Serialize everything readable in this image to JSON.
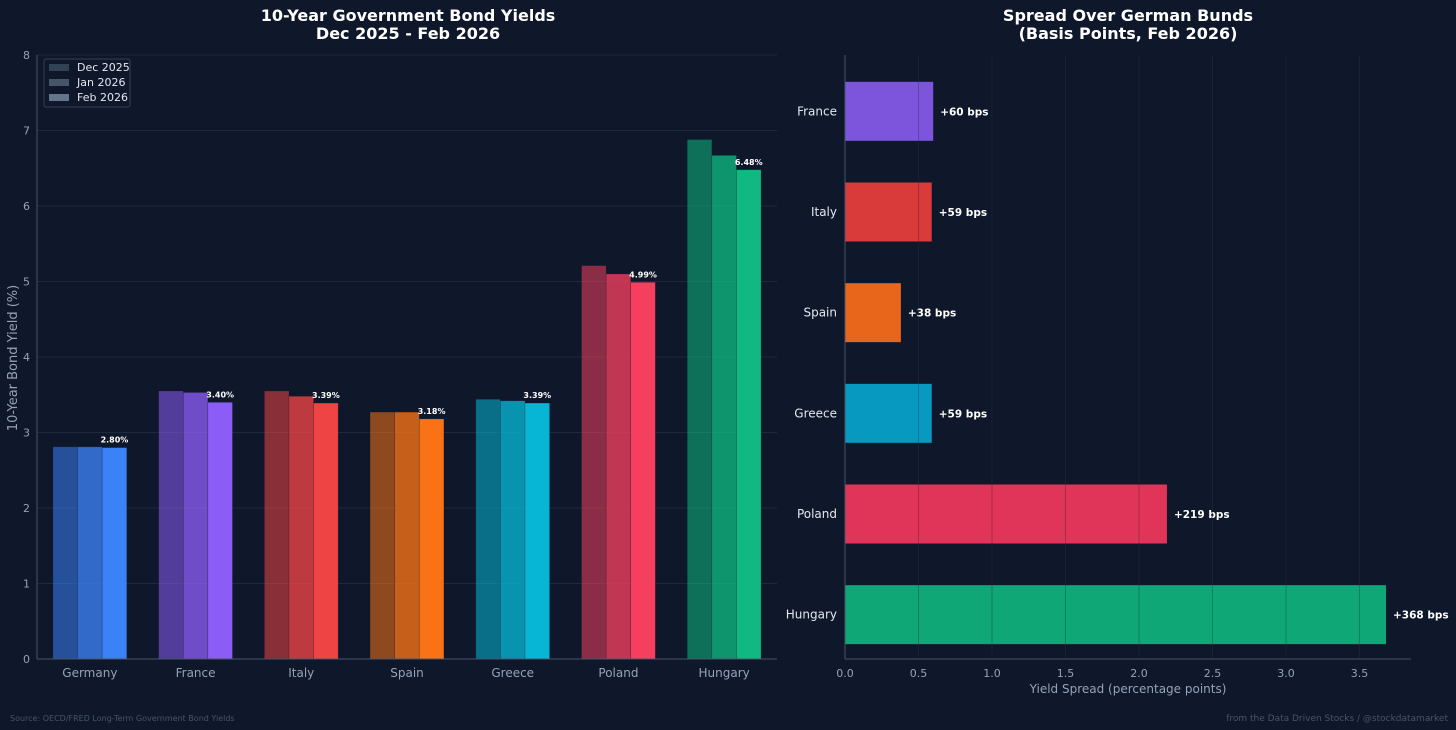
{
  "colors": {
    "background": "#0f172a",
    "axis": "#475569",
    "grid": "#1e293b",
    "text": "#94a3b8",
    "title": "#ffffff"
  },
  "footer": {
    "source": "Source: OECD/FRED Long-Term Government Bond Yields",
    "credit": "from the Data Driven Stocks / @stockdatamarket"
  },
  "chart_data": [
    {
      "type": "bar",
      "title": "10-Year Government Bond Yields",
      "subtitle": "Dec 2025 - Feb 2026",
      "xlabel": "",
      "ylabel": "10-Year Bond Yield (%)",
      "ylim": [
        0,
        8
      ],
      "yticks": [
        "0",
        "1",
        "2",
        "3",
        "4",
        "5",
        "6",
        "7",
        "8"
      ],
      "grid": true,
      "legend_position": "top-left",
      "categories": [
        "Germany",
        "France",
        "Italy",
        "Spain",
        "Greece",
        "Poland",
        "Hungary"
      ],
      "colors": [
        "#3b82f6",
        "#8b5cf6",
        "#ef4444",
        "#f97316",
        "#06b6d4",
        "#f43f5e",
        "#10b981"
      ],
      "series": [
        {
          "name": "Dec 2025",
          "opacity": 0.55,
          "values": [
            2.81,
            3.55,
            3.55,
            3.27,
            3.44,
            5.21,
            6.88
          ]
        },
        {
          "name": "Jan 2026",
          "opacity": 0.78,
          "values": [
            2.81,
            3.53,
            3.48,
            3.27,
            3.42,
            5.1,
            6.67
          ]
        },
        {
          "name": "Feb 2026",
          "opacity": 1.0,
          "values": [
            2.8,
            3.4,
            3.39,
            3.18,
            3.39,
            4.99,
            6.48
          ]
        }
      ],
      "data_labels": [
        "2.80%",
        "3.40%",
        "3.39%",
        "3.18%",
        "3.39%",
        "4.99%",
        "6.48%"
      ]
    },
    {
      "type": "bar",
      "orientation": "horizontal",
      "title": "Spread Over German Bunds",
      "subtitle": "(Basis Points, Feb 2026)",
      "xlabel": "Yield Spread (percentage points)",
      "ylabel": "",
      "xlim": [
        0,
        3.85
      ],
      "xticks": [
        "0.0",
        "0.5",
        "1.0",
        "1.5",
        "2.0",
        "2.5",
        "3.0",
        "3.5"
      ],
      "grid": true,
      "categories": [
        "France",
        "Italy",
        "Spain",
        "Greece",
        "Poland",
        "Hungary"
      ],
      "values": [
        0.6,
        0.59,
        0.38,
        0.59,
        2.19,
        3.68
      ],
      "colors": [
        "#7c55dc",
        "#d93b3b",
        "#e8661c",
        "#0899c0",
        "#e03558",
        "#10a777"
      ],
      "data_labels": [
        "+60 bps",
        "+59 bps",
        "+38 bps",
        "+59 bps",
        "+219 bps",
        "+368 bps"
      ]
    }
  ]
}
